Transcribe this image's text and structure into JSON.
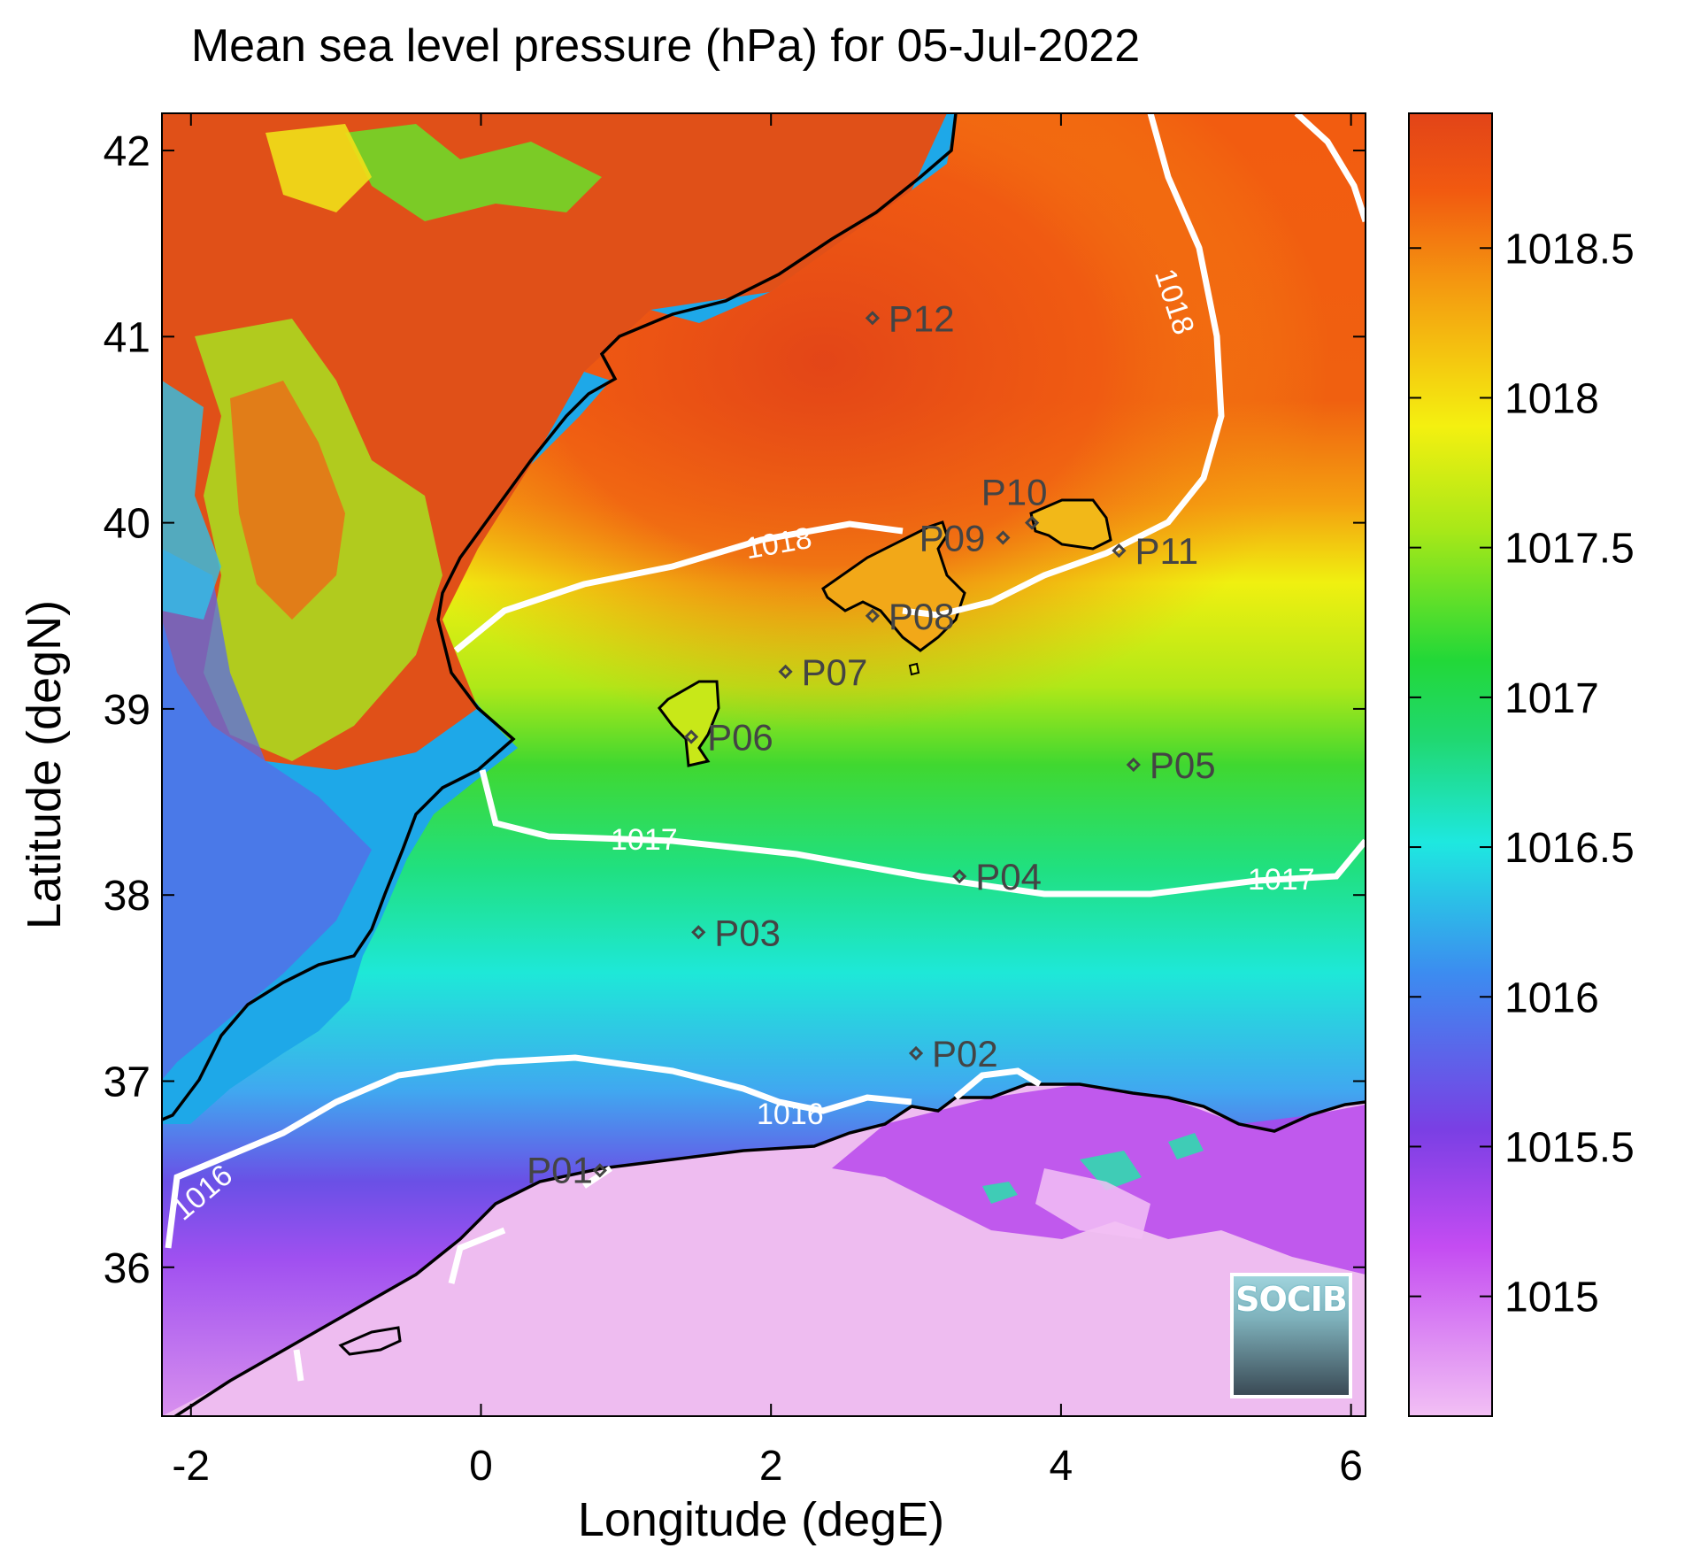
{
  "title": "Mean sea level pressure (hPa) for 05-Jul-2022",
  "xlabel": "Longitude (degE)",
  "ylabel": "Latitude (degN)",
  "logo_text": "SOCIB",
  "map": {
    "xlim": [
      -2.2,
      6.1
    ],
    "ylim": [
      35.2,
      42.2
    ],
    "x_ticks": [
      -2,
      0,
      2,
      4,
      6
    ],
    "x_tick_labels": [
      "-2",
      "0",
      "2",
      "4",
      "6"
    ],
    "y_ticks": [
      36,
      37,
      38,
      39,
      40,
      41,
      42
    ],
    "y_tick_labels": [
      "36",
      "37",
      "38",
      "39",
      "40",
      "41",
      "42"
    ]
  },
  "colorbar": {
    "range": [
      1014.6,
      1018.95
    ],
    "ticks": [
      1015,
      1015.5,
      1016,
      1016.5,
      1017,
      1017.5,
      1018,
      1018.5
    ],
    "tick_labels": [
      "1015",
      "1015.5",
      "1016",
      "1016.5",
      "1017",
      "1017.5",
      "1018",
      "1018.5"
    ],
    "colors": [
      "#f2c0f4",
      "#c44cf2",
      "#7a3fe4",
      "#3c8cf0",
      "#1ee8e0",
      "#20d870",
      "#22d838",
      "#a8e818",
      "#f4f010",
      "#f4a010",
      "#f25a10",
      "#e24418"
    ]
  },
  "contour_labels": [
    "1018",
    "1018",
    "1017",
    "1017",
    "1016",
    "1016"
  ],
  "points": [
    {
      "name": "P01",
      "lon": 0.82,
      "lat": 36.52
    },
    {
      "name": "P02",
      "lon": 3.0,
      "lat": 37.15
    },
    {
      "name": "P03",
      "lon": 1.5,
      "lat": 37.8
    },
    {
      "name": "P04",
      "lon": 3.3,
      "lat": 38.1
    },
    {
      "name": "P05",
      "lon": 4.5,
      "lat": 38.7
    },
    {
      "name": "P06",
      "lon": 1.45,
      "lat": 38.85
    },
    {
      "name": "P07",
      "lon": 2.1,
      "lat": 39.2
    },
    {
      "name": "P08",
      "lon": 2.7,
      "lat": 39.5
    },
    {
      "name": "P09",
      "lon": 3.6,
      "lat": 39.92
    },
    {
      "name": "P10",
      "lon": 3.8,
      "lat": 40.0
    },
    {
      "name": "P11",
      "lon": 4.4,
      "lat": 39.85
    },
    {
      "name": "P12",
      "lon": 2.7,
      "lat": 41.1
    }
  ]
}
